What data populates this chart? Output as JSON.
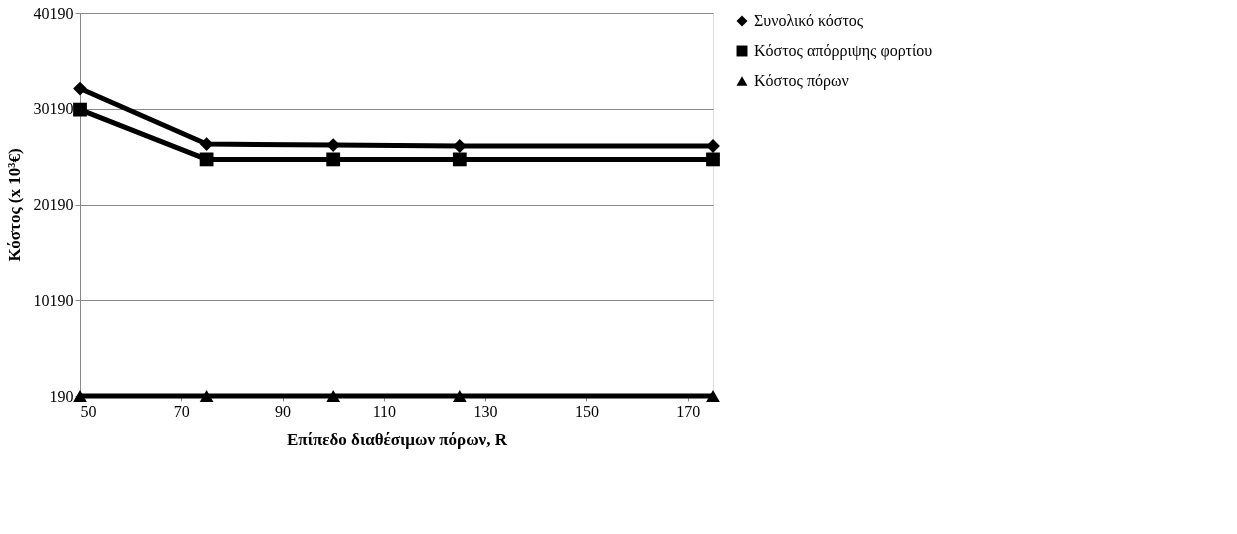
{
  "chart_data": {
    "type": "line",
    "xlabel": "Επίπεδο διαθέσιμων πόρων, R",
    "ylabel": "Κόστος (x 10³€)",
    "x": [
      50,
      75,
      100,
      125,
      175
    ],
    "series": [
      {
        "name": "Συνολικό κόστος",
        "color": "#000000",
        "marker": "diamond",
        "values": [
          32300,
          26500,
          26400,
          26300,
          26300
        ]
      },
      {
        "name": "Κόστος απόρριψης φορτίου",
        "color": "#000000",
        "marker": "square",
        "values": [
          30100,
          24900,
          24900,
          24900,
          24900
        ]
      },
      {
        "name": "Κόστος πόρων",
        "color": "#000000",
        "marker": "triangle",
        "values": [
          190,
          190,
          190,
          190,
          190
        ]
      }
    ],
    "xlim": [
      50,
      175
    ],
    "xticks": [
      50,
      70,
      90,
      110,
      130,
      150,
      170
    ],
    "ylim": [
      190,
      40190
    ],
    "yticks": [
      190,
      10190,
      20190,
      30190,
      40190
    ],
    "grid": "y",
    "legend": "right",
    "line_style": "solid"
  }
}
